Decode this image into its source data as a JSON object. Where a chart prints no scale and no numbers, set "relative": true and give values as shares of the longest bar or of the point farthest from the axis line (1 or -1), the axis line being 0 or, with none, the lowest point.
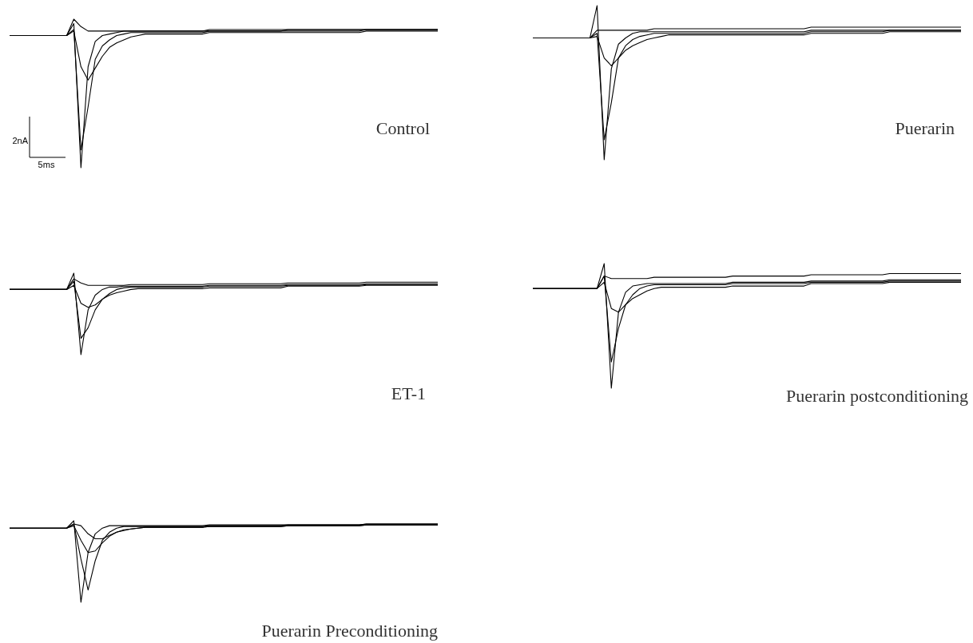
{
  "chart_data": [
    {
      "type": "line",
      "title": "Control",
      "relative": true,
      "tick_labels": false,
      "annotations": [
        "2nA",
        "5ms"
      ],
      "categories": [
        null,
        null,
        null,
        null,
        null,
        null,
        null,
        null,
        null,
        null,
        null,
        null,
        null,
        null,
        null,
        null,
        null,
        null,
        null,
        null,
        null,
        null,
        null,
        null,
        null,
        null,
        null,
        null,
        null,
        null,
        null,
        null,
        null,
        null,
        null,
        null,
        null,
        null,
        null,
        null,
        null,
        null,
        null,
        null,
        null,
        null,
        null,
        null,
        null,
        null,
        null,
        null,
        null,
        null,
        null,
        null,
        null,
        null,
        null,
        null,
        null
      ],
      "series": [
        {
          "color": "#000000",
          "values": [
            0.89,
            0.89,
            0.89,
            0.89,
            0.89,
            0.89,
            0.89,
            0.89,
            0.89,
            0.97,
            0,
            0.68,
            0.85,
            0.89,
            0.9,
            0.91,
            0.92,
            0.92,
            0.92,
            0.92,
            0.92,
            0.92,
            0.92,
            0.92,
            0.92,
            0.92,
            0.92,
            0.92,
            0.92,
            0.92,
            0.92,
            0.92,
            0.92,
            0.92,
            0.92,
            0.92,
            0.92,
            0.92,
            0.92,
            0.93,
            0.93,
            0.93,
            0.93,
            0.93,
            0.93,
            0.93,
            0.93,
            0.93,
            0.93,
            0.93,
            0.93,
            0.93,
            0.93,
            0.93,
            0.93,
            0.93,
            0.93,
            0.93,
            0.93,
            0.93,
            0.93
          ]
        },
        {
          "color": "#000000",
          "values": [
            0.89,
            0.89,
            0.89,
            0.89,
            0.89,
            0.89,
            0.89,
            0.89,
            0.89,
            0.93,
            0.12,
            0.41,
            0.73,
            0.82,
            0.86,
            0.89,
            0.9,
            0.91,
            0.91,
            0.91,
            0.91,
            0.91,
            0.91,
            0.91,
            0.91,
            0.91,
            0.91,
            0.91,
            0.92,
            0.92,
            0.92,
            0.92,
            0.92,
            0.92,
            0.92,
            0.92,
            0.92,
            0.92,
            0.92,
            0.92,
            0.92,
            0.92,
            0.92,
            0.92,
            0.92,
            0.92,
            0.92,
            0.92,
            0.92,
            0.92,
            0.93,
            0.93,
            0.93,
            0.93,
            0.93,
            0.93,
            0.93,
            0.93,
            0.93,
            0.93,
            0.93
          ]
        },
        {
          "color": "#000000",
          "values": [
            0.89,
            0.89,
            0.89,
            0.89,
            0.89,
            0.89,
            0.89,
            0.89,
            0.89,
            0.92,
            0.68,
            0.59,
            0.67,
            0.75,
            0.81,
            0.84,
            0.86,
            0.88,
            0.89,
            0.9,
            0.9,
            0.9,
            0.9,
            0.9,
            0.9,
            0.9,
            0.9,
            0.9,
            0.91,
            0.91,
            0.91,
            0.91,
            0.91,
            0.91,
            0.91,
            0.91,
            0.91,
            0.91,
            0.91,
            0.91,
            0.91,
            0.91,
            0.91,
            0.91,
            0.91,
            0.91,
            0.91,
            0.91,
            0.91,
            0.91,
            0.92,
            0.92,
            0.92,
            0.92,
            0.92,
            0.92,
            0.92,
            0.92,
            0.92,
            0.92,
            0.92
          ]
        },
        {
          "color": "#000000",
          "values": [
            0.89,
            0.89,
            0.89,
            0.89,
            0.89,
            0.89,
            0.89,
            0.89,
            0.89,
            1,
            0.95,
            0.92,
            0.92,
            0.92,
            0.92,
            0.92,
            0.92,
            0.92,
            0.92,
            0.92,
            0.92,
            0.92,
            0.92,
            0.92,
            0.92,
            0.92,
            0.92,
            0.92,
            0.93,
            0.93,
            0.93,
            0.93,
            0.93,
            0.93,
            0.93,
            0.93,
            0.93,
            0.93,
            0.93,
            0.93,
            0.93,
            0.93,
            0.93,
            0.93,
            0.93,
            0.93,
            0.93,
            0.93,
            0.93,
            0.93,
            0.93,
            0.93,
            0.93,
            0.93,
            0.93,
            0.93,
            0.93,
            0.93,
            0.93,
            0.93,
            0.93
          ]
        }
      ]
    },
    {
      "type": "line",
      "title": "Puerarin",
      "relative": true,
      "tick_labels": false,
      "categories": [
        null,
        null,
        null,
        null,
        null,
        null,
        null,
        null,
        null,
        null,
        null,
        null,
        null,
        null,
        null,
        null,
        null,
        null,
        null,
        null,
        null,
        null,
        null,
        null,
        null,
        null,
        null,
        null,
        null,
        null,
        null,
        null,
        null,
        null,
        null,
        null,
        null,
        null,
        null,
        null,
        null,
        null,
        null,
        null,
        null,
        null,
        null,
        null,
        null,
        null,
        null,
        null,
        null,
        null,
        null,
        null,
        null,
        null,
        null,
        null,
        null
      ],
      "series": [
        {
          "color": "#000000",
          "values": [
            0.79,
            0.79,
            0.79,
            0.79,
            0.79,
            0.79,
            0.79,
            0.79,
            0.79,
            1,
            0,
            0.59,
            0.75,
            0.79,
            0.82,
            0.83,
            0.83,
            0.83,
            0.83,
            0.83,
            0.83,
            0.83,
            0.83,
            0.83,
            0.83,
            0.83,
            0.83,
            0.83,
            0.83,
            0.83,
            0.83,
            0.83,
            0.83,
            0.83,
            0.83,
            0.83,
            0.83,
            0.83,
            0.83,
            0.84,
            0.84,
            0.84,
            0.84,
            0.84,
            0.84,
            0.84,
            0.84,
            0.84,
            0.84,
            0.84,
            0.84,
            0.84,
            0.84,
            0.84,
            0.84,
            0.84,
            0.84,
            0.84,
            0.84,
            0.84,
            0.84
          ]
        },
        {
          "color": "#000000",
          "values": [
            0.79,
            0.79,
            0.79,
            0.79,
            0.79,
            0.79,
            0.79,
            0.79,
            0.79,
            0.82,
            0.13,
            0.37,
            0.66,
            0.74,
            0.78,
            0.8,
            0.81,
            0.82,
            0.82,
            0.82,
            0.82,
            0.82,
            0.82,
            0.82,
            0.82,
            0.82,
            0.82,
            0.82,
            0.82,
            0.82,
            0.82,
            0.82,
            0.82,
            0.82,
            0.82,
            0.82,
            0.82,
            0.82,
            0.82,
            0.83,
            0.83,
            0.83,
            0.83,
            0.83,
            0.83,
            0.83,
            0.83,
            0.83,
            0.83,
            0.83,
            0.84,
            0.84,
            0.84,
            0.84,
            0.84,
            0.84,
            0.84,
            0.84,
            0.84,
            0.84,
            0.84
          ]
        },
        {
          "color": "#000000",
          "values": [
            0.79,
            0.79,
            0.79,
            0.79,
            0.79,
            0.79,
            0.79,
            0.79,
            0.79,
            0.8,
            0.66,
            0.61,
            0.66,
            0.71,
            0.74,
            0.76,
            0.78,
            0.79,
            0.8,
            0.81,
            0.81,
            0.81,
            0.81,
            0.81,
            0.81,
            0.81,
            0.81,
            0.81,
            0.81,
            0.81,
            0.81,
            0.81,
            0.81,
            0.81,
            0.81,
            0.81,
            0.81,
            0.81,
            0.81,
            0.82,
            0.82,
            0.82,
            0.82,
            0.82,
            0.82,
            0.82,
            0.82,
            0.82,
            0.82,
            0.82,
            0.83,
            0.83,
            0.83,
            0.83,
            0.83,
            0.83,
            0.83,
            0.83,
            0.83,
            0.83,
            0.83
          ]
        },
        {
          "color": "#000000",
          "values": [
            0.79,
            0.79,
            0.79,
            0.79,
            0.79,
            0.79,
            0.79,
            0.79,
            0.79,
            0.84,
            0.84,
            0.84,
            0.84,
            0.84,
            0.84,
            0.84,
            0.84,
            0.85,
            0.85,
            0.85,
            0.85,
            0.85,
            0.85,
            0.85,
            0.85,
            0.85,
            0.85,
            0.85,
            0.85,
            0.85,
            0.85,
            0.85,
            0.85,
            0.85,
            0.85,
            0.85,
            0.85,
            0.85,
            0.85,
            0.86,
            0.86,
            0.86,
            0.86,
            0.86,
            0.86,
            0.86,
            0.86,
            0.86,
            0.86,
            0.86,
            0.86,
            0.86,
            0.86,
            0.86,
            0.86,
            0.86,
            0.86,
            0.86,
            0.86,
            0.86,
            0.86
          ]
        }
      ]
    },
    {
      "type": "line",
      "title": "ET-1",
      "relative": true,
      "tick_labels": false,
      "categories": [
        null,
        null,
        null,
        null,
        null,
        null,
        null,
        null,
        null,
        null,
        null,
        null,
        null,
        null,
        null,
        null,
        null,
        null,
        null,
        null,
        null,
        null,
        null,
        null,
        null,
        null,
        null,
        null,
        null,
        null,
        null,
        null,
        null,
        null,
        null,
        null,
        null,
        null,
        null,
        null,
        null,
        null,
        null,
        null,
        null,
        null,
        null,
        null,
        null,
        null,
        null,
        null,
        null,
        null,
        null,
        null,
        null,
        null,
        null,
        null,
        null
      ],
      "series": [
        {
          "color": "#000000",
          "values": [
            0.8,
            0.8,
            0.8,
            0.8,
            0.8,
            0.8,
            0.8,
            0.8,
            0.8,
            1,
            0,
            0.55,
            0.73,
            0.8,
            0.83,
            0.83,
            0.84,
            0.84,
            0.84,
            0.84,
            0.84,
            0.84,
            0.84,
            0.84,
            0.84,
            0.84,
            0.84,
            0.84,
            0.85,
            0.85,
            0.85,
            0.85,
            0.85,
            0.85,
            0.85,
            0.85,
            0.85,
            0.85,
            0.85,
            0.86,
            0.86,
            0.86,
            0.86,
            0.86,
            0.86,
            0.86,
            0.86,
            0.86,
            0.86,
            0.86,
            0.87,
            0.87,
            0.87,
            0.87,
            0.87,
            0.87,
            0.87,
            0.87,
            0.87,
            0.87,
            0.87
          ]
        },
        {
          "color": "#000000",
          "values": [
            0.8,
            0.8,
            0.8,
            0.8,
            0.8,
            0.8,
            0.8,
            0.8,
            0.8,
            0.9,
            0.2,
            0.33,
            0.55,
            0.68,
            0.75,
            0.8,
            0.82,
            0.83,
            0.83,
            0.83,
            0.83,
            0.83,
            0.83,
            0.83,
            0.83,
            0.83,
            0.83,
            0.83,
            0.84,
            0.84,
            0.84,
            0.84,
            0.84,
            0.84,
            0.84,
            0.84,
            0.84,
            0.84,
            0.84,
            0.85,
            0.85,
            0.85,
            0.85,
            0.85,
            0.85,
            0.85,
            0.85,
            0.85,
            0.85,
            0.85,
            0.86,
            0.86,
            0.86,
            0.86,
            0.86,
            0.86,
            0.86,
            0.86,
            0.86,
            0.86,
            0.86
          ]
        },
        {
          "color": "#000000",
          "values": [
            0.8,
            0.8,
            0.8,
            0.8,
            0.8,
            0.8,
            0.8,
            0.8,
            0.8,
            0.85,
            0.63,
            0.58,
            0.61,
            0.68,
            0.73,
            0.76,
            0.78,
            0.8,
            0.81,
            0.81,
            0.81,
            0.81,
            0.81,
            0.81,
            0.81,
            0.81,
            0.81,
            0.81,
            0.82,
            0.82,
            0.82,
            0.82,
            0.82,
            0.82,
            0.82,
            0.82,
            0.82,
            0.82,
            0.82,
            0.84,
            0.84,
            0.84,
            0.84,
            0.84,
            0.84,
            0.84,
            0.84,
            0.84,
            0.84,
            0.84,
            0.85,
            0.85,
            0.85,
            0.85,
            0.85,
            0.85,
            0.85,
            0.85,
            0.85,
            0.85,
            0.85
          ]
        },
        {
          "color": "#000000",
          "values": [
            0.8,
            0.8,
            0.8,
            0.8,
            0.8,
            0.8,
            0.8,
            0.8,
            0.8,
            0.93,
            0.88,
            0.85,
            0.85,
            0.85,
            0.85,
            0.85,
            0.85,
            0.86,
            0.86,
            0.86,
            0.86,
            0.86,
            0.86,
            0.86,
            0.86,
            0.86,
            0.86,
            0.86,
            0.87,
            0.87,
            0.87,
            0.87,
            0.87,
            0.87,
            0.87,
            0.87,
            0.87,
            0.87,
            0.87,
            0.88,
            0.88,
            0.88,
            0.88,
            0.88,
            0.88,
            0.88,
            0.88,
            0.88,
            0.88,
            0.88,
            0.89,
            0.89,
            0.89,
            0.89,
            0.89,
            0.89,
            0.89,
            0.89,
            0.89,
            0.89,
            0.89
          ]
        }
      ]
    },
    {
      "type": "line",
      "title": "Puerarin postconditioning",
      "relative": true,
      "tick_labels": false,
      "categories": [
        null,
        null,
        null,
        null,
        null,
        null,
        null,
        null,
        null,
        null,
        null,
        null,
        null,
        null,
        null,
        null,
        null,
        null,
        null,
        null,
        null,
        null,
        null,
        null,
        null,
        null,
        null,
        null,
        null,
        null,
        null,
        null,
        null,
        null,
        null,
        null,
        null,
        null,
        null,
        null,
        null,
        null,
        null,
        null,
        null,
        null,
        null,
        null,
        null,
        null,
        null,
        null,
        null,
        null,
        null,
        null,
        null,
        null,
        null,
        null,
        null
      ],
      "series": [
        {
          "color": "#000000",
          "values": [
            0.8,
            0.8,
            0.8,
            0.8,
            0.8,
            0.8,
            0.8,
            0.8,
            0.8,
            0.8,
            1,
            0,
            0.61,
            0.77,
            0.82,
            0.83,
            0.84,
            0.84,
            0.84,
            0.84,
            0.84,
            0.84,
            0.84,
            0.84,
            0.84,
            0.84,
            0.84,
            0.84,
            0.85,
            0.85,
            0.85,
            0.85,
            0.85,
            0.85,
            0.85,
            0.85,
            0.85,
            0.85,
            0.85,
            0.86,
            0.86,
            0.86,
            0.86,
            0.86,
            0.86,
            0.86,
            0.86,
            0.86,
            0.86,
            0.86,
            0.87,
            0.87,
            0.87,
            0.87,
            0.87,
            0.87,
            0.87,
            0.87,
            0.87,
            0.87,
            0.87
          ]
        },
        {
          "color": "#000000",
          "values": [
            0.8,
            0.8,
            0.8,
            0.8,
            0.8,
            0.8,
            0.8,
            0.8,
            0.8,
            0.8,
            0.9,
            0.21,
            0.48,
            0.67,
            0.75,
            0.8,
            0.82,
            0.83,
            0.83,
            0.83,
            0.83,
            0.83,
            0.83,
            0.83,
            0.83,
            0.83,
            0.83,
            0.83,
            0.84,
            0.84,
            0.84,
            0.84,
            0.84,
            0.84,
            0.84,
            0.84,
            0.84,
            0.84,
            0.84,
            0.85,
            0.85,
            0.85,
            0.85,
            0.85,
            0.85,
            0.85,
            0.85,
            0.85,
            0.85,
            0.85,
            0.86,
            0.86,
            0.86,
            0.86,
            0.86,
            0.86,
            0.86,
            0.86,
            0.86,
            0.86,
            0.86
          ]
        },
        {
          "color": "#000000",
          "values": [
            0.8,
            0.8,
            0.8,
            0.8,
            0.8,
            0.8,
            0.8,
            0.8,
            0.8,
            0.8,
            0.85,
            0.64,
            0.61,
            0.67,
            0.72,
            0.75,
            0.78,
            0.8,
            0.81,
            0.81,
            0.81,
            0.81,
            0.81,
            0.81,
            0.81,
            0.81,
            0.81,
            0.81,
            0.82,
            0.82,
            0.82,
            0.82,
            0.82,
            0.82,
            0.82,
            0.82,
            0.82,
            0.82,
            0.82,
            0.84,
            0.84,
            0.84,
            0.84,
            0.84,
            0.84,
            0.84,
            0.84,
            0.84,
            0.84,
            0.84,
            0.85,
            0.85,
            0.85,
            0.85,
            0.85,
            0.85,
            0.85,
            0.85,
            0.85,
            0.85,
            0.85
          ]
        },
        {
          "color": "#000000",
          "values": [
            0.8,
            0.8,
            0.8,
            0.8,
            0.8,
            0.8,
            0.8,
            0.8,
            0.8,
            0.8,
            0.9,
            0.88,
            0.88,
            0.88,
            0.88,
            0.88,
            0.88,
            0.89,
            0.89,
            0.89,
            0.89,
            0.89,
            0.89,
            0.89,
            0.89,
            0.89,
            0.89,
            0.89,
            0.9,
            0.9,
            0.9,
            0.9,
            0.9,
            0.9,
            0.9,
            0.9,
            0.9,
            0.9,
            0.9,
            0.91,
            0.91,
            0.91,
            0.91,
            0.91,
            0.91,
            0.91,
            0.91,
            0.91,
            0.91,
            0.91,
            0.92,
            0.92,
            0.92,
            0.92,
            0.92,
            0.92,
            0.92,
            0.92,
            0.92,
            0.92,
            0.92
          ]
        }
      ]
    },
    {
      "type": "line",
      "title": "Puerarin Preconditioning",
      "relative": true,
      "tick_labels": false,
      "categories": [
        null,
        null,
        null,
        null,
        null,
        null,
        null,
        null,
        null,
        null,
        null,
        null,
        null,
        null,
        null,
        null,
        null,
        null,
        null,
        null,
        null,
        null,
        null,
        null,
        null,
        null,
        null,
        null,
        null,
        null,
        null,
        null,
        null,
        null,
        null,
        null,
        null,
        null,
        null,
        null,
        null,
        null,
        null,
        null,
        null,
        null,
        null,
        null,
        null,
        null,
        null,
        null,
        null,
        null,
        null,
        null,
        null,
        null,
        null,
        null,
        null
      ],
      "series": [
        {
          "color": "#000000",
          "values": [
            0.91,
            0.91,
            0.91,
            0.91,
            0.91,
            0.91,
            0.91,
            0.91,
            0.91,
            1,
            0,
            0.61,
            0.84,
            0.91,
            0.94,
            0.94,
            0.94,
            0.94,
            0.94,
            0.94,
            0.94,
            0.94,
            0.94,
            0.94,
            0.94,
            0.94,
            0.94,
            0.94,
            0.95,
            0.95,
            0.95,
            0.95,
            0.95,
            0.95,
            0.95,
            0.95,
            0.95,
            0.95,
            0.95,
            0.95,
            0.95,
            0.95,
            0.95,
            0.95,
            0.95,
            0.95,
            0.95,
            0.95,
            0.95,
            0.95,
            0.96,
            0.96,
            0.96,
            0.96,
            0.96,
            0.96,
            0.96,
            0.96,
            0.96,
            0.96,
            0.96
          ]
        },
        {
          "color": "#000000",
          "values": [
            0.91,
            0.91,
            0.91,
            0.91,
            0.91,
            0.91,
            0.91,
            0.91,
            0.91,
            0.96,
            0.53,
            0.15,
            0.51,
            0.76,
            0.86,
            0.91,
            0.93,
            0.93,
            0.93,
            0.93,
            0.93,
            0.93,
            0.93,
            0.93,
            0.93,
            0.93,
            0.93,
            0.93,
            0.94,
            0.94,
            0.94,
            0.94,
            0.94,
            0.94,
            0.94,
            0.94,
            0.94,
            0.94,
            0.94,
            0.95,
            0.95,
            0.95,
            0.95,
            0.95,
            0.95,
            0.95,
            0.95,
            0.95,
            0.95,
            0.95,
            0.96,
            0.96,
            0.96,
            0.96,
            0.96,
            0.96,
            0.96,
            0.96,
            0.96,
            0.96,
            0.96
          ]
        },
        {
          "color": "#000000",
          "values": [
            0.91,
            0.91,
            0.91,
            0.91,
            0.91,
            0.91,
            0.91,
            0.91,
            0.91,
            0.94,
            0.76,
            0.61,
            0.63,
            0.73,
            0.81,
            0.86,
            0.88,
            0.9,
            0.91,
            0.92,
            0.92,
            0.92,
            0.92,
            0.92,
            0.92,
            0.92,
            0.92,
            0.92,
            0.93,
            0.93,
            0.93,
            0.93,
            0.93,
            0.93,
            0.93,
            0.93,
            0.93,
            0.93,
            0.93,
            0.94,
            0.94,
            0.94,
            0.94,
            0.94,
            0.94,
            0.94,
            0.94,
            0.94,
            0.94,
            0.94,
            0.95,
            0.95,
            0.95,
            0.95,
            0.95,
            0.95,
            0.95,
            0.95,
            0.95,
            0.95,
            0.95
          ]
        },
        {
          "color": "#000000",
          "values": [
            0.91,
            0.91,
            0.91,
            0.91,
            0.91,
            0.91,
            0.91,
            0.91,
            0.91,
            0.96,
            0.94,
            0.84,
            0.78,
            0.78,
            0.82,
            0.86,
            0.89,
            0.9,
            0.91,
            0.92,
            0.92,
            0.92,
            0.92,
            0.92,
            0.92,
            0.92,
            0.92,
            0.92,
            0.93,
            0.93,
            0.93,
            0.93,
            0.93,
            0.93,
            0.93,
            0.93,
            0.93,
            0.93,
            0.93,
            0.94,
            0.94,
            0.94,
            0.94,
            0.94,
            0.94,
            0.94,
            0.94,
            0.94,
            0.94,
            0.94,
            0.95,
            0.95,
            0.95,
            0.95,
            0.95,
            0.95,
            0.95,
            0.95,
            0.95,
            0.95,
            0.95
          ]
        }
      ]
    }
  ]
}
